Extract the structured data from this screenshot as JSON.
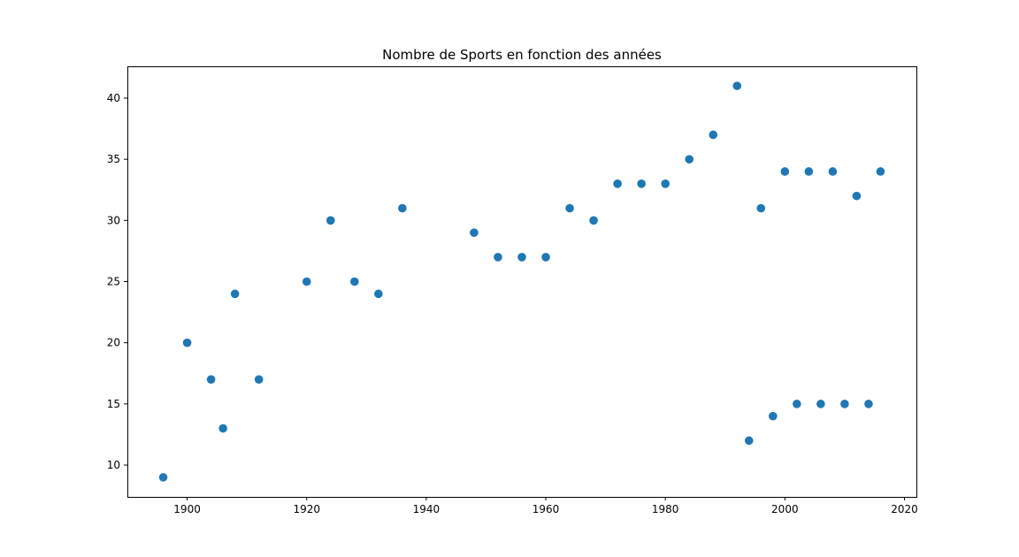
{
  "chart_data": {
    "type": "scatter",
    "title": "Nombre de Sports en fonction des années",
    "xlabel": "",
    "ylabel": "",
    "xlim": [
      1890,
      2022
    ],
    "ylim": [
      7.4,
      42.6
    ],
    "x_ticks": [
      1900,
      1920,
      1940,
      1960,
      1980,
      2000,
      2020
    ],
    "y_ticks": [
      10,
      15,
      20,
      25,
      30,
      35,
      40
    ],
    "grid": false,
    "marker_color": "#1f77b4",
    "series": [
      {
        "points": [
          [
            1896,
            9
          ],
          [
            1900,
            20
          ],
          [
            1904,
            17
          ],
          [
            1906,
            13
          ],
          [
            1908,
            24
          ],
          [
            1912,
            17
          ],
          [
            1920,
            25
          ],
          [
            1924,
            30
          ],
          [
            1928,
            25
          ],
          [
            1932,
            24
          ],
          [
            1936,
            31
          ],
          [
            1948,
            29
          ],
          [
            1952,
            27
          ],
          [
            1956,
            27
          ],
          [
            1960,
            27
          ],
          [
            1964,
            31
          ],
          [
            1968,
            30
          ],
          [
            1972,
            33
          ],
          [
            1976,
            33
          ],
          [
            1980,
            33
          ],
          [
            1984,
            35
          ],
          [
            1988,
            37
          ],
          [
            1992,
            41
          ],
          [
            1994,
            12
          ],
          [
            1996,
            31
          ],
          [
            1998,
            14
          ],
          [
            2000,
            34
          ],
          [
            2002,
            15
          ],
          [
            2004,
            34
          ],
          [
            2006,
            15
          ],
          [
            2008,
            34
          ],
          [
            2010,
            15
          ],
          [
            2012,
            32
          ],
          [
            2014,
            15
          ],
          [
            2016,
            34
          ]
        ]
      }
    ]
  }
}
